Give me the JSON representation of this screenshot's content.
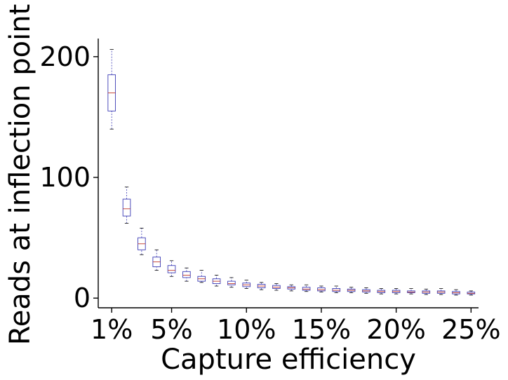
{
  "chart_data": {
    "type": "boxplot",
    "title": "",
    "xlabel": "Capture efficiency",
    "ylabel": "Reads at inflection point",
    "x_ticks": [
      {
        "value": 1,
        "label": "1%"
      },
      {
        "value": 5,
        "label": "5%"
      },
      {
        "value": 10,
        "label": "10%"
      },
      {
        "value": 15,
        "label": "15%"
      },
      {
        "value": 20,
        "label": "20%"
      },
      {
        "value": 25,
        "label": "25%"
      }
    ],
    "y_ticks": [
      {
        "value": 0,
        "label": "0"
      },
      {
        "value": 100,
        "label": "100"
      },
      {
        "value": 200,
        "label": "200"
      }
    ],
    "xlim": [
      0.1,
      25.5
    ],
    "ylim": [
      -8,
      215
    ],
    "box_color": "#3b3bb5",
    "median_color": "#c0392b",
    "boxes": [
      {
        "x": 1,
        "min": 140,
        "q1": 155,
        "median": 170,
        "q3": 185,
        "max": 206
      },
      {
        "x": 2,
        "min": 62,
        "q1": 68,
        "median": 74,
        "q3": 82,
        "max": 92
      },
      {
        "x": 3,
        "min": 36,
        "q1": 40,
        "median": 45,
        "q3": 50,
        "max": 58
      },
      {
        "x": 4,
        "min": 23,
        "q1": 26,
        "median": 30,
        "q3": 34,
        "max": 40
      },
      {
        "x": 5,
        "min": 18,
        "q1": 21,
        "median": 23,
        "q3": 27,
        "max": 31
      },
      {
        "x": 6,
        "min": 14,
        "q1": 17,
        "median": 19,
        "q3": 22,
        "max": 25
      },
      {
        "x": 7,
        "min": 13,
        "q1": 14,
        "median": 16,
        "q3": 18,
        "max": 23
      },
      {
        "x": 8,
        "min": 10,
        "q1": 12,
        "median": 14,
        "q3": 16,
        "max": 19
      },
      {
        "x": 9,
        "min": 9,
        "q1": 11,
        "median": 12,
        "q3": 14,
        "max": 17
      },
      {
        "x": 10,
        "min": 8,
        "q1": 9.5,
        "median": 11,
        "q3": 12.5,
        "max": 15
      },
      {
        "x": 11,
        "min": 7,
        "q1": 8.5,
        "median": 10,
        "q3": 11.5,
        "max": 13
      },
      {
        "x": 12,
        "min": 6.5,
        "q1": 8,
        "median": 9,
        "q3": 10.5,
        "max": 12
      },
      {
        "x": 13,
        "min": 6,
        "q1": 7.5,
        "median": 8.5,
        "q3": 9.5,
        "max": 11
      },
      {
        "x": 14,
        "min": 5.5,
        "q1": 6.5,
        "median": 7.5,
        "q3": 9,
        "max": 11
      },
      {
        "x": 15,
        "min": 5,
        "q1": 6,
        "median": 7,
        "q3": 8.5,
        "max": 10
      },
      {
        "x": 16,
        "min": 4.5,
        "q1": 5.5,
        "median": 6.5,
        "q3": 8,
        "max": 10
      },
      {
        "x": 17,
        "min": 4.5,
        "q1": 5.5,
        "median": 6.5,
        "q3": 7.5,
        "max": 9
      },
      {
        "x": 18,
        "min": 4,
        "q1": 5,
        "median": 6,
        "q3": 7,
        "max": 8.5
      },
      {
        "x": 19,
        "min": 3.5,
        "q1": 4.5,
        "median": 5.5,
        "q3": 6.5,
        "max": 8
      },
      {
        "x": 20,
        "min": 3.5,
        "q1": 4.5,
        "median": 5.5,
        "q3": 6.5,
        "max": 8
      },
      {
        "x": 21,
        "min": 3.5,
        "q1": 4.5,
        "median": 5,
        "q3": 6,
        "max": 8
      },
      {
        "x": 22,
        "min": 3,
        "q1": 4,
        "median": 5,
        "q3": 6,
        "max": 7.5
      },
      {
        "x": 23,
        "min": 3,
        "q1": 4,
        "median": 5,
        "q3": 6,
        "max": 8
      },
      {
        "x": 24,
        "min": 2.5,
        "q1": 3.5,
        "median": 4.5,
        "q3": 5.5,
        "max": 7
      },
      {
        "x": 25,
        "min": 2.5,
        "q1": 3.5,
        "median": 4,
        "q3": 5,
        "max": 6
      }
    ]
  }
}
